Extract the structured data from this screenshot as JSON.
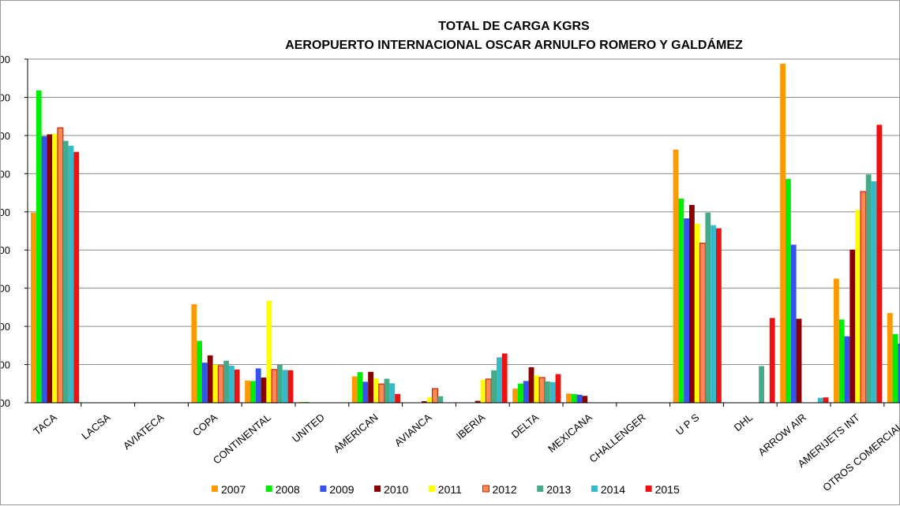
{
  "chart_data": {
    "type": "bar",
    "title": "TOTAL DE CARGA  KGRS",
    "subtitle": "AEROPUERTO INTERNACIONAL OSCAR ARNULFO ROMERO Y GALDÁMEZ",
    "categories": [
      "TACA",
      "LACSA",
      "AVIATECA",
      "COPA",
      "CONTINENTAL",
      "UNITED",
      "AMERICAN",
      "AVIANCA",
      "IBERIA",
      "DELTA",
      "MEXICANA",
      "CHALLENGER",
      "U  P  S",
      "DHL",
      "ARROW  AIR",
      "AMERIJETS INT",
      "OTROS COMERCIALES"
    ],
    "ylim": [
      0,
      9
    ],
    "grid": true,
    "legend_position": "bottom",
    "series": [
      {
        "name": "2007",
        "color": "#FF9900",
        "values": [
          4.98,
          0,
          0,
          2.58,
          0.58,
          0.02,
          0.69,
          0,
          0,
          0.37,
          0.24,
          0,
          6.63,
          0,
          8.88,
          3.25,
          2.35
        ]
      },
      {
        "name": "2008",
        "color": "#00EE00",
        "values": [
          8.18,
          0,
          0,
          1.62,
          0.57,
          0.02,
          0.8,
          0,
          0,
          0.5,
          0.23,
          0,
          5.35,
          0,
          5.86,
          2.18,
          1.8
        ]
      },
      {
        "name": "2009",
        "color": "#3355EE",
        "values": [
          6.98,
          0,
          0,
          1.05,
          0.9,
          0,
          0.55,
          0,
          0,
          0.57,
          0.21,
          0,
          4.83,
          0,
          4.14,
          1.74,
          1.55
        ]
      },
      {
        "name": "2010",
        "color": "#880000",
        "values": [
          7.03,
          0,
          0,
          1.24,
          0.66,
          0,
          0.81,
          0.04,
          0.05,
          0.93,
          0.18,
          0,
          5.18,
          0,
          2.2,
          4.01,
          0
        ]
      },
      {
        "name": "2011",
        "color": "#FFFF00",
        "values": [
          7.04,
          0,
          0,
          1.0,
          2.67,
          0,
          0.64,
          0.15,
          0.6,
          0.71,
          0,
          0,
          4.69,
          0,
          0,
          5.05,
          0
        ]
      },
      {
        "name": "2012",
        "color": "#FF8855",
        "values": [
          7.2,
          0,
          0,
          0.97,
          0.87,
          0,
          0.49,
          0.37,
          0.62,
          0.66,
          0,
          0,
          4.18,
          0,
          0,
          5.53,
          0
        ]
      },
      {
        "name": "2013",
        "color": "#44AA88",
        "values": [
          6.86,
          0,
          0,
          1.1,
          0.99,
          0,
          0.63,
          0.17,
          0.85,
          0.56,
          0,
          0,
          4.98,
          0.96,
          0,
          5.98,
          0
        ]
      },
      {
        "name": "2014",
        "color": "#33BBCC",
        "values": [
          6.73,
          0,
          0,
          0.97,
          0.86,
          0,
          0.51,
          0,
          1.19,
          0.54,
          0,
          0,
          4.65,
          0,
          0.13,
          5.8,
          0
        ]
      },
      {
        "name": "2015",
        "color": "#EE1111",
        "values": [
          6.57,
          0,
          0,
          0.87,
          0.85,
          0,
          0.23,
          0,
          1.29,
          0.75,
          0,
          0,
          4.57,
          2.22,
          0.14,
          7.28,
          0
        ]
      }
    ]
  }
}
